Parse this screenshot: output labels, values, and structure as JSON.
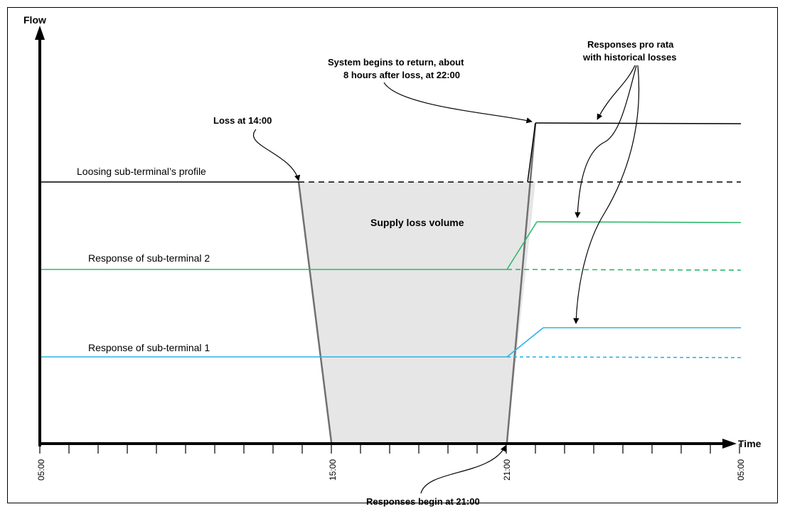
{
  "axes": {
    "y_title": "Flow",
    "x_title": "Time",
    "tick_labels": [
      "05:00",
      "15:00",
      "21:00",
      "05:00"
    ]
  },
  "labels": {
    "loosing_profile": "Loosing sub-terminal’s profile",
    "response_2": "Response of sub-terminal 2",
    "response_1": "Response of sub-terminal 1",
    "supply_loss_volume": "Supply loss volume"
  },
  "annotations": {
    "loss": "Loss at 14:00",
    "system_return_line1": "System begins to return, about",
    "system_return_line2": "8 hours after loss, at 22:00",
    "pro_rata_line1": "Responses pro rata",
    "pro_rata_line2": "with historical losses",
    "responses_begin": "Responses begin at 21:00"
  },
  "colors": {
    "profile": "#000000",
    "response_2": "#2eb86b",
    "response_1": "#2fb3e6",
    "volume_fill": "#e6e6e6",
    "volume_edge": "#707070"
  }
}
